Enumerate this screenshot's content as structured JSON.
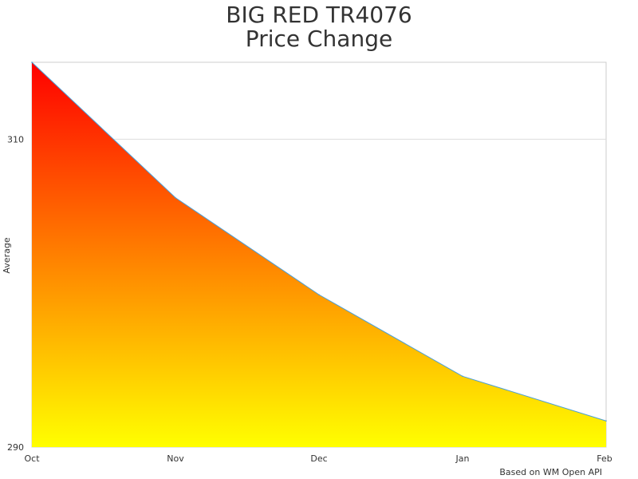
{
  "chart_data": {
    "type": "area",
    "title_lines": [
      "BIG RED TR4076",
      "Price Change"
    ],
    "categories": [
      "Oct",
      "Nov",
      "Dec",
      "Jan",
      "Feb"
    ],
    "series": [
      {
        "values": [
          315,
          306.2,
          299.9,
          294.6,
          291.7
        ]
      }
    ],
    "xlabel": "",
    "ylabel": "Average",
    "ylim": [
      290,
      315
    ],
    "y_ticks": [
      {
        "value": 290,
        "label": "290"
      },
      {
        "value": 310,
        "label": "310"
      }
    ],
    "grid": true,
    "legend": "none",
    "fill_gradient": {
      "top": "#ff0000",
      "bottom": "#ffff00"
    },
    "line_color": "#4a9fd8",
    "grid_color": "#dddddd",
    "axis_color": "#cccccc",
    "source": "Based on WM Open API"
  }
}
